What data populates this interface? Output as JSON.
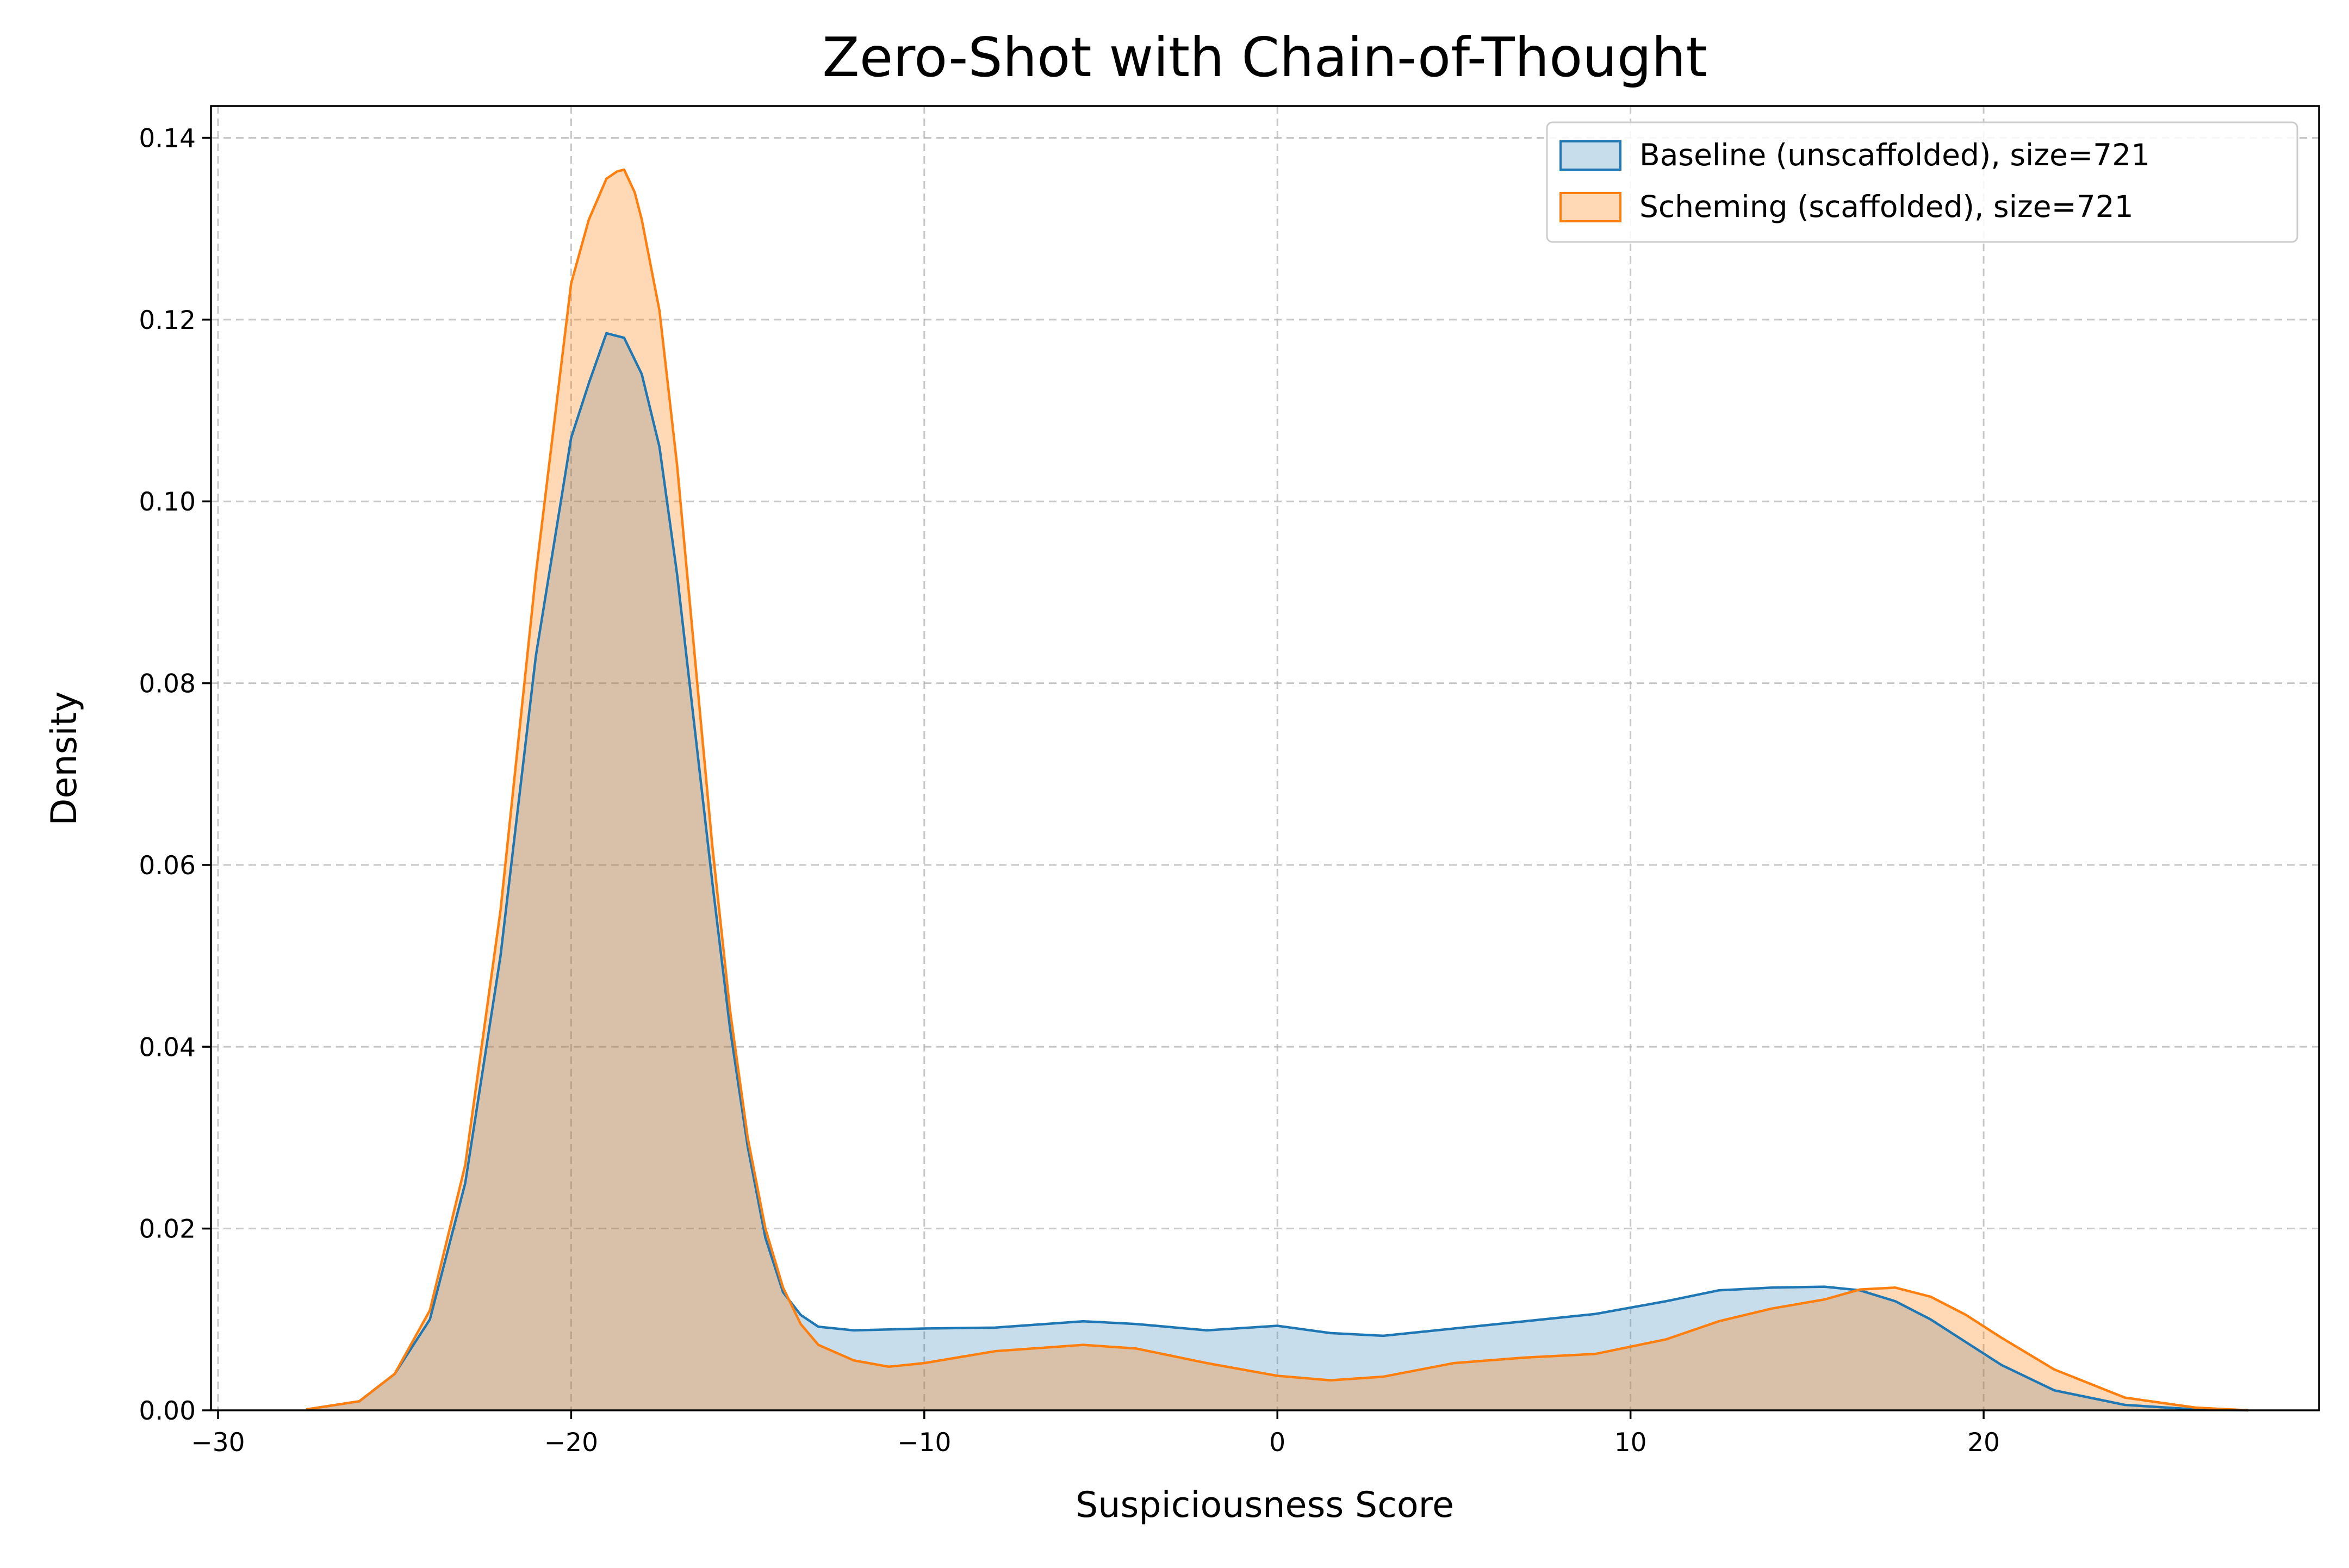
{
  "chart_data": {
    "type": "area",
    "title": "Zero-Shot with Chain-of-Thought",
    "xlabel": "Suspiciousness Score",
    "ylabel": "Density",
    "xlim": [
      -30.2,
      29.5
    ],
    "ylim": [
      0,
      0.1435
    ],
    "x_ticks": [
      -30,
      -20,
      -10,
      0,
      10,
      20
    ],
    "x_tick_labels": [
      "−30",
      "−20",
      "−10",
      "0",
      "10",
      "20"
    ],
    "y_ticks": [
      0,
      0.02,
      0.04,
      0.06,
      0.08,
      0.1,
      0.12,
      0.14
    ],
    "y_tick_labels": [
      "0.00",
      "0.02",
      "0.04",
      "0.06",
      "0.08",
      "0.10",
      "0.12",
      "0.14"
    ],
    "grid": true,
    "legend_position": "top-right",
    "series": [
      {
        "name": "Baseline (unscaffolded), size=721",
        "color": "#1f77b4",
        "x": [
          -27.5,
          -26,
          -25,
          -24,
          -23,
          -22,
          -21,
          -20,
          -19.5,
          -19,
          -18.5,
          -18,
          -17.5,
          -17,
          -16.5,
          -16,
          -15.5,
          -15,
          -14.5,
          -14,
          -13.5,
          -13,
          -12,
          -11,
          -10,
          -8,
          -5.5,
          -4,
          -2,
          0,
          1.5,
          3,
          5,
          7,
          9,
          11,
          12.5,
          14,
          15.5,
          16.5,
          17.5,
          18.5,
          19.5,
          20.5,
          22,
          24,
          26,
          27.5
        ],
        "y": [
          0.0001,
          0.001,
          0.004,
          0.01,
          0.025,
          0.05,
          0.083,
          0.107,
          0.113,
          0.1185,
          0.118,
          0.114,
          0.106,
          0.092,
          0.075,
          0.058,
          0.042,
          0.029,
          0.019,
          0.013,
          0.0105,
          0.0092,
          0.0088,
          0.0089,
          0.009,
          0.0091,
          0.0098,
          0.0095,
          0.0088,
          0.0093,
          0.0085,
          0.0082,
          0.009,
          0.0098,
          0.0106,
          0.012,
          0.0132,
          0.0135,
          0.0136,
          0.0132,
          0.012,
          0.01,
          0.0075,
          0.005,
          0.0022,
          0.0006,
          0.0001,
          0.0
        ],
        "fill_alpha": 0.25
      },
      {
        "name": "Scheming (scaffolded), size=721",
        "color": "#ff7f0e",
        "x": [
          -27.5,
          -26,
          -25,
          -24,
          -23,
          -22,
          -21,
          -20,
          -19.5,
          -19,
          -18.7,
          -18.5,
          -18.2,
          -18,
          -17.5,
          -17,
          -16.5,
          -16,
          -15.5,
          -15,
          -14.5,
          -14,
          -13.5,
          -13,
          -12,
          -11,
          -10,
          -8,
          -5.5,
          -4,
          -2,
          0,
          1.5,
          3,
          5,
          7,
          9,
          11,
          12.5,
          14,
          15.5,
          16.5,
          17.5,
          18.5,
          19.5,
          20.5,
          22,
          24,
          26,
          27.5
        ],
        "y": [
          0.0001,
          0.001,
          0.004,
          0.011,
          0.027,
          0.055,
          0.092,
          0.124,
          0.131,
          0.1355,
          0.1363,
          0.1365,
          0.134,
          0.131,
          0.121,
          0.104,
          0.083,
          0.062,
          0.044,
          0.03,
          0.02,
          0.0135,
          0.0095,
          0.0072,
          0.0055,
          0.0048,
          0.0052,
          0.0065,
          0.0072,
          0.0068,
          0.0052,
          0.0038,
          0.0033,
          0.0037,
          0.0052,
          0.0058,
          0.0062,
          0.0078,
          0.0098,
          0.0112,
          0.0122,
          0.0133,
          0.0135,
          0.0125,
          0.0105,
          0.008,
          0.0045,
          0.0014,
          0.0003,
          0.0
        ],
        "fill_alpha": 0.3
      }
    ]
  }
}
